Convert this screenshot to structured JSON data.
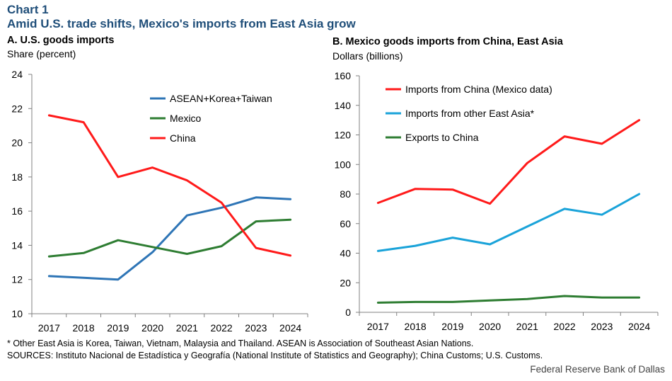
{
  "header": {
    "chart_label": "Chart 1",
    "title": "Amid U.S. trade shifts, Mexico's imports from East Asia grow"
  },
  "footer": {
    "note": "* Other East Asia is Korea, Taiwan, Vietnam, Malaysia and Thailand. ASEAN is Association of Southeast Asian Nations.",
    "sources": "SOURCES: Instituto Nacional de Estadística y Geografía (National Institute of Statistics and Geography); China Customs; U.S. Customs.",
    "credit": "Federal Reserve Bank of Dallas"
  },
  "chart_data": [
    {
      "type": "line",
      "title": "A. U.S. goods imports",
      "ylabel": "Share (percent)",
      "xlabel": "",
      "categories": [
        "2017",
        "2018",
        "2019",
        "2020",
        "2021",
        "2022",
        "2023",
        "2024"
      ],
      "ylim": [
        10,
        24
      ],
      "yticks": [
        10,
        12,
        14,
        16,
        18,
        20,
        22,
        24
      ],
      "grid": false,
      "legend_position": "top-right",
      "series": [
        {
          "name": "ASEAN+Korea+Taiwan",
          "color": "#2e75b6",
          "values": [
            12.2,
            12.1,
            12.0,
            13.6,
            15.75,
            16.2,
            16.8,
            16.7
          ]
        },
        {
          "name": "Mexico",
          "color": "#2e7d32",
          "values": [
            13.35,
            13.55,
            14.3,
            13.9,
            13.5,
            13.95,
            15.4,
            15.5
          ]
        },
        {
          "name": "China",
          "color": "#ff1a1a",
          "values": [
            21.6,
            21.2,
            18.0,
            18.55,
            17.8,
            16.5,
            13.85,
            13.4
          ]
        }
      ]
    },
    {
      "type": "line",
      "title": "B. Mexico goods imports from China, East Asia",
      "ylabel": "Dollars (billions)",
      "xlabel": "",
      "categories": [
        "2017",
        "2018",
        "2019",
        "2020",
        "2021",
        "2022",
        "2023",
        "2024"
      ],
      "ylim": [
        0,
        160
      ],
      "yticks": [
        0,
        20,
        40,
        60,
        80,
        100,
        120,
        140,
        160
      ],
      "grid": false,
      "legend_position": "top-left",
      "series": [
        {
          "name": "Imports from China (Mexico data)",
          "color": "#ff1a1a",
          "values": [
            74,
            83.5,
            83,
            73.5,
            101,
            119,
            114,
            130
          ]
        },
        {
          "name": "Imports from other East Asia*",
          "color": "#1aa3d9",
          "values": [
            41.5,
            45,
            50.5,
            46,
            58,
            70,
            66,
            80
          ]
        },
        {
          "name": "Exports to China",
          "color": "#2e7d32",
          "values": [
            6.5,
            7,
            7,
            8,
            9,
            11,
            10,
            10
          ]
        }
      ]
    }
  ]
}
